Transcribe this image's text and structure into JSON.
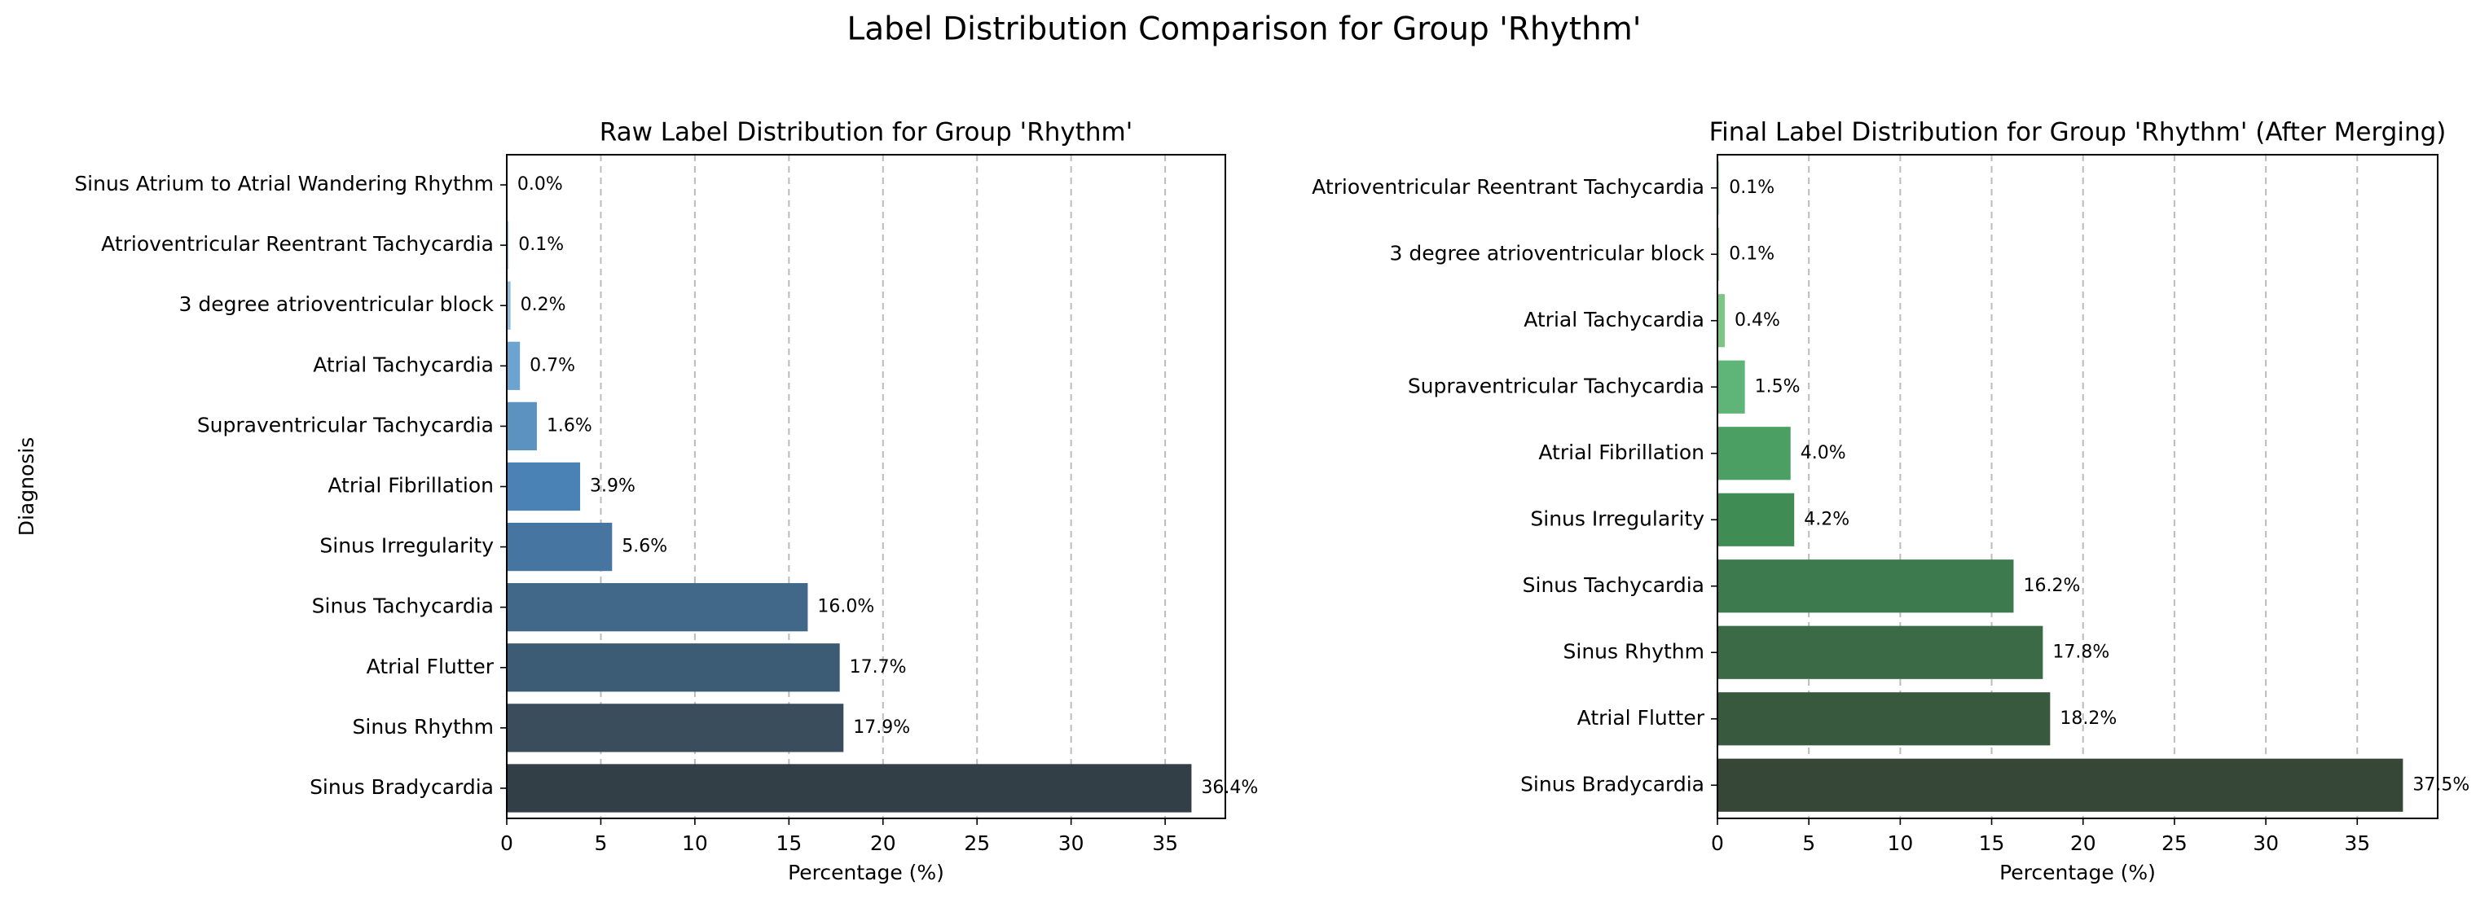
{
  "figure_title": "Label Distribution Comparison for Group 'Rhythm'",
  "chart_data": [
    {
      "type": "bar",
      "orientation": "horizontal",
      "title": "Raw Label Distribution for Group 'Rhythm'",
      "xlabel": "Percentage (%)",
      "ylabel": "Diagnosis",
      "categories": [
        "Sinus Atrium to Atrial Wandering Rhythm",
        "Atrioventricular Reentrant Tachycardia",
        "3 degree atrioventricular block",
        "Atrial Tachycardia",
        "Supraventricular Tachycardia",
        "Atrial Fibrillation",
        "Sinus Irregularity",
        "Sinus Tachycardia",
        "Atrial Flutter",
        "Sinus Rhythm",
        "Sinus Bradycardia"
      ],
      "values": [
        0.04,
        0.1,
        0.2,
        0.7,
        1.6,
        3.9,
        5.6,
        16.0,
        17.7,
        17.9,
        36.4
      ],
      "data_labels": [
        "0.0%",
        "0.1%",
        "0.2%",
        "0.7%",
        "1.6%",
        "3.9%",
        "5.6%",
        "16.0%",
        "17.7%",
        "17.9%",
        "36.4%"
      ],
      "colors": [
        "#c3d9ee",
        "#afcde6",
        "#8fbbdc",
        "#6ca4cf",
        "#5a93c0",
        "#4a82b5",
        "#4575a0",
        "#416888",
        "#3c5b74",
        "#394d5c",
        "#333f47"
      ],
      "xticks": [
        "0",
        "5",
        "10",
        "15",
        "20",
        "25",
        "30",
        "35"
      ],
      "xlim": [
        0,
        38.2
      ],
      "grid": "x-dashed",
      "legend": "none"
    },
    {
      "type": "bar",
      "orientation": "horizontal",
      "title": "Final Label Distribution for Group 'Rhythm' (After Merging)",
      "xlabel": "Percentage (%)",
      "ylabel": "",
      "categories": [
        "Atrioventricular Reentrant Tachycardia",
        "3 degree atrioventricular block",
        "Atrial Tachycardia",
        "Supraventricular Tachycardia",
        "Atrial Fibrillation",
        "Sinus Irregularity",
        "Sinus Tachycardia",
        "Sinus Rhythm",
        "Atrial Flutter",
        "Sinus Bradycardia"
      ],
      "values": [
        0.1,
        0.1,
        0.4,
        1.5,
        4.0,
        4.2,
        16.2,
        17.8,
        18.2,
        37.5
      ],
      "data_labels": [
        "0.1%",
        "0.1%",
        "0.4%",
        "1.5%",
        "4.0%",
        "4.2%",
        "16.2%",
        "17.8%",
        "18.2%",
        "37.5%"
      ],
      "colors": [
        "#b6dcb3",
        "#9ed39c",
        "#7cc684",
        "#5fb477",
        "#4b9f62",
        "#3f8d55",
        "#3d7a4e",
        "#3b6a46",
        "#39593f",
        "#364738"
      ],
      "xticks": [
        "0",
        "5",
        "10",
        "15",
        "20",
        "25",
        "30",
        "35"
      ],
      "xlim": [
        0,
        39.4
      ],
      "grid": "x-dashed",
      "legend": "none"
    }
  ]
}
